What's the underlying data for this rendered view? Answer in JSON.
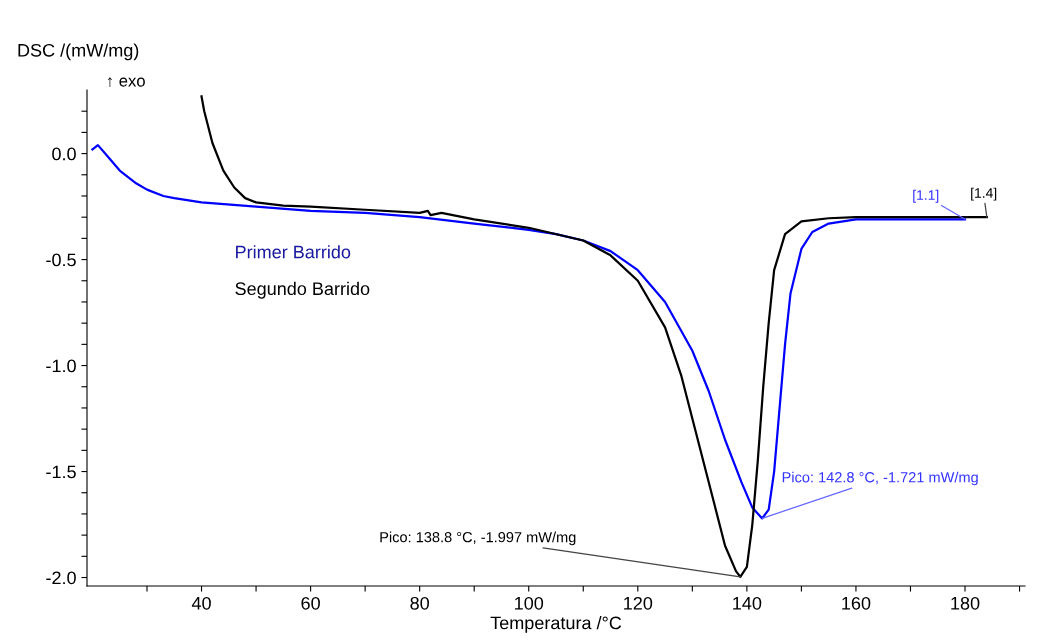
{
  "chart_data": {
    "type": "line",
    "xlabel": "Temperatura /°C",
    "ylabel": "DSC /(mW/mg)",
    "xlim": [
      19,
      191
    ],
    "ylim": [
      -2.04,
      0.3
    ],
    "xticks": [
      {
        "value": 30,
        "label": null
      },
      40,
      {
        "value": 50,
        "label": null
      },
      60,
      {
        "value": 70,
        "label": null
      },
      80,
      {
        "value": 90,
        "label": null
      },
      100,
      {
        "value": 110,
        "label": null
      },
      120,
      {
        "value": 130,
        "label": null
      },
      140,
      {
        "value": 150,
        "label": null
      },
      160,
      {
        "value": 170,
        "label": null
      },
      180,
      {
        "value": 190,
        "label": null
      }
    ],
    "yticks": [
      {
        "value": -2.0,
        "label": "-2.0"
      },
      {
        "value": -1.9,
        "label": null
      },
      {
        "value": -1.8,
        "label": null
      },
      {
        "value": -1.7,
        "label": null
      },
      {
        "value": -1.6,
        "label": null
      },
      {
        "value": -1.5,
        "label": "-1.5"
      },
      {
        "value": -1.4,
        "label": null
      },
      {
        "value": -1.3,
        "label": null
      },
      {
        "value": -1.2,
        "label": null
      },
      {
        "value": -1.1,
        "label": null
      },
      {
        "value": -1.0,
        "label": "-1.0"
      },
      {
        "value": -0.9,
        "label": null
      },
      {
        "value": -0.8,
        "label": null
      },
      {
        "value": -0.7,
        "label": null
      },
      {
        "value": -0.6,
        "label": null
      },
      {
        "value": -0.5,
        "label": "-0.5"
      },
      {
        "value": -0.4,
        "label": null
      },
      {
        "value": -0.3,
        "label": null
      },
      {
        "value": -0.2,
        "label": null
      },
      {
        "value": -0.1,
        "label": null
      },
      {
        "value": 0.0,
        "label": "0.0"
      },
      {
        "value": 0.1,
        "label": null
      },
      {
        "value": 0.2,
        "label": null
      }
    ],
    "grid": false,
    "legend": "top left",
    "marker": "none",
    "line_style": "solid",
    "series": [
      {
        "name": "Primer Barrido",
        "color": "#0000ff",
        "x": [
          20,
          21,
          23,
          25,
          28,
          30,
          33,
          35,
          40,
          50,
          60,
          70,
          80,
          90,
          100,
          105,
          110,
          115,
          120,
          125,
          130,
          133,
          136,
          139,
          141,
          142.8,
          144,
          145,
          146,
          147,
          148,
          150,
          152,
          155,
          160,
          170,
          180
        ],
        "values": [
          0.02,
          0.04,
          -0.02,
          -0.08,
          -0.14,
          -0.17,
          -0.2,
          -0.21,
          -0.23,
          -0.25,
          -0.27,
          -0.28,
          -0.3,
          -0.33,
          -0.36,
          -0.38,
          -0.41,
          -0.46,
          -0.55,
          -0.7,
          -0.93,
          -1.12,
          -1.35,
          -1.55,
          -1.67,
          -1.721,
          -1.68,
          -1.5,
          -1.2,
          -0.9,
          -0.66,
          -0.45,
          -0.37,
          -0.33,
          -0.31,
          -0.31,
          -0.31
        ]
      },
      {
        "name": "Segundo Barrido",
        "color": "#000000",
        "x": [
          40,
          40.5,
          42,
          44,
          46,
          48,
          50,
          55,
          60,
          70,
          80,
          81.5,
          82,
          84,
          90,
          100,
          110,
          115,
          120,
          125,
          128,
          131,
          134,
          136,
          138,
          138.8,
          140,
          141,
          142,
          143,
          144,
          145,
          147,
          150,
          155,
          160,
          184
        ],
        "values": [
          0.27,
          0.2,
          0.05,
          -0.08,
          -0.16,
          -0.21,
          -0.23,
          -0.245,
          -0.25,
          -0.265,
          -0.28,
          -0.27,
          -0.29,
          -0.28,
          -0.31,
          -0.35,
          -0.41,
          -0.48,
          -0.6,
          -0.82,
          -1.05,
          -1.35,
          -1.65,
          -1.85,
          -1.97,
          -1.997,
          -1.95,
          -1.75,
          -1.45,
          -1.1,
          -0.8,
          -0.55,
          -0.38,
          -0.32,
          -0.305,
          -0.3,
          -0.3
        ]
      }
    ],
    "annotations": [
      "↑ exo",
      {
        "text": "Pico: 142.8 °C, -1.721 mW/mg",
        "x": 142.8,
        "y": -1.721
      },
      {
        "text": "Pico: 138.8 °C, -1.997 mW/mg",
        "x": 138.8,
        "y": -1.997
      },
      {
        "text": "[1.1]",
        "x": 180,
        "y": -0.31
      },
      {
        "text": "[1.4]",
        "x": 184,
        "y": -0.3
      }
    ]
  }
}
